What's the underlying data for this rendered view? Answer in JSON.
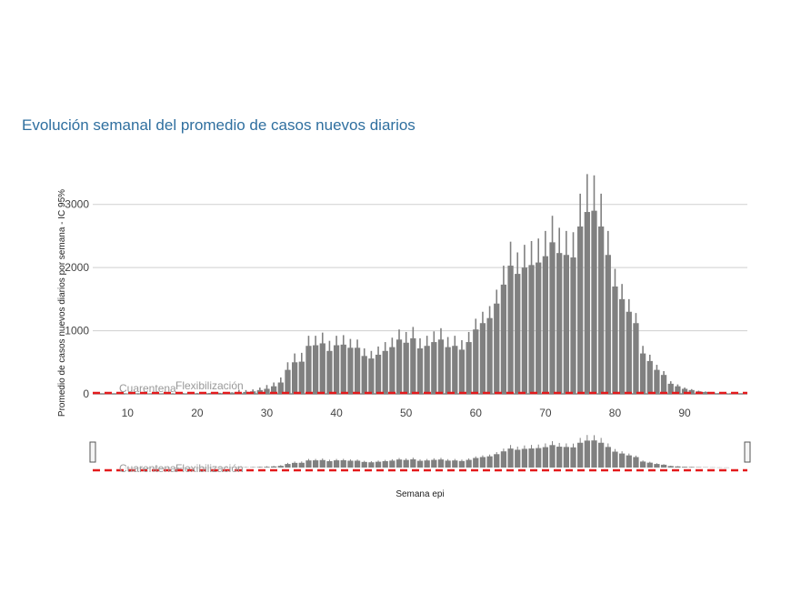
{
  "page": {
    "title": "Evolución semanal del promedio de casos nuevos diarios"
  },
  "chart_data": {
    "type": "bar",
    "title": "Evolución semanal del promedio de casos nuevos diarios",
    "xlabel": "Semana epi",
    "ylabel": "Promedio de casos nuevos diarios por semana - IC 95%",
    "xlim": [
      5,
      99
    ],
    "ylim": [
      0,
      3500
    ],
    "yticks": [
      0,
      1000,
      2000,
      3000
    ],
    "xticks": [
      10,
      20,
      30,
      40,
      50,
      60,
      70,
      80,
      90
    ],
    "grid": true,
    "bar_color": "#808080",
    "error_color": "#808080",
    "reference_line": {
      "value": 0,
      "color": "#e31a1c",
      "style": "dashed"
    },
    "annotations": [
      "Cuarentena",
      "Flexibilización"
    ],
    "range_slider": true,
    "x": [
      10,
      11,
      12,
      13,
      14,
      15,
      16,
      17,
      18,
      19,
      20,
      21,
      22,
      23,
      24,
      25,
      26,
      27,
      28,
      29,
      30,
      31,
      32,
      33,
      34,
      35,
      36,
      37,
      38,
      39,
      40,
      41,
      42,
      43,
      44,
      45,
      46,
      47,
      48,
      49,
      50,
      51,
      52,
      53,
      54,
      55,
      56,
      57,
      58,
      59,
      60,
      61,
      62,
      63,
      64,
      65,
      66,
      67,
      68,
      69,
      70,
      71,
      72,
      73,
      74,
      75,
      76,
      77,
      78,
      79,
      80,
      81,
      82,
      83,
      84,
      85,
      86,
      87,
      88,
      89,
      90,
      91,
      92,
      93,
      94,
      95,
      96
    ],
    "values": [
      2,
      2,
      3,
      3,
      4,
      5,
      6,
      7,
      8,
      9,
      10,
      12,
      14,
      16,
      18,
      20,
      25,
      30,
      40,
      60,
      80,
      120,
      180,
      380,
      500,
      510,
      760,
      770,
      800,
      680,
      770,
      780,
      730,
      730,
      600,
      560,
      620,
      680,
      740,
      860,
      810,
      880,
      720,
      760,
      820,
      860,
      740,
      760,
      700,
      820,
      1020,
      1120,
      1200,
      1430,
      1730,
      2030,
      1900,
      2000,
      2040,
      2080,
      2180,
      2400,
      2230,
      2200,
      2160,
      2650,
      2880,
      2900,
      2650,
      2200,
      1700,
      1500,
      1300,
      1120,
      640,
      520,
      380,
      300,
      160,
      120,
      80,
      60,
      40,
      30,
      20,
      12,
      8
    ],
    "error": [
      5,
      5,
      5,
      5,
      5,
      5,
      5,
      5,
      5,
      5,
      5,
      5,
      5,
      5,
      5,
      5,
      40,
      30,
      30,
      40,
      60,
      60,
      80,
      120,
      140,
      140,
      160,
      150,
      170,
      160,
      150,
      150,
      140,
      130,
      120,
      120,
      130,
      140,
      150,
      160,
      170,
      180,
      160,
      160,
      170,
      180,
      160,
      160,
      150,
      160,
      170,
      180,
      190,
      220,
      300,
      380,
      340,
      360,
      380,
      380,
      400,
      420,
      400,
      380,
      400,
      520,
      600,
      560,
      520,
      380,
      280,
      240,
      200,
      160,
      120,
      100,
      80,
      60,
      40,
      30,
      20,
      15,
      10,
      8,
      6,
      5,
      5
    ]
  }
}
